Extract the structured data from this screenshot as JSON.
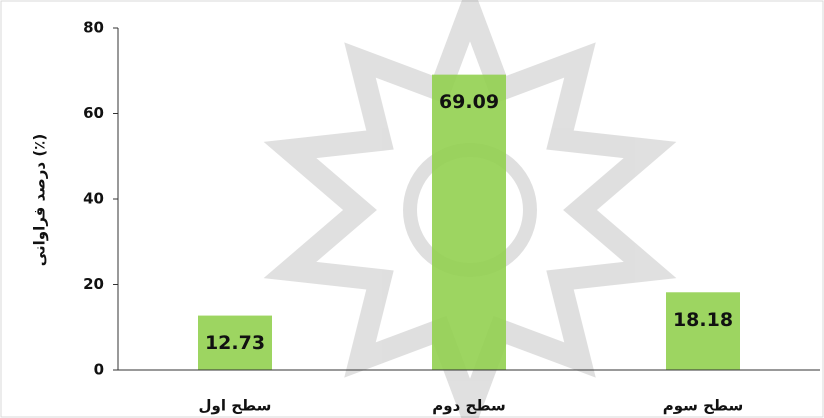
{
  "chart_data": {
    "type": "bar",
    "y_label": "درصد فراوانی (٪)",
    "categories": [
      "سطح اول",
      "سطح دوم",
      "سطح سوم"
    ],
    "values": [
      12.73,
      69.09,
      18.18
    ],
    "color": "#92d050",
    "ylim": [
      0,
      80
    ],
    "yticks": [
      0,
      20,
      40,
      60,
      80
    ]
  }
}
